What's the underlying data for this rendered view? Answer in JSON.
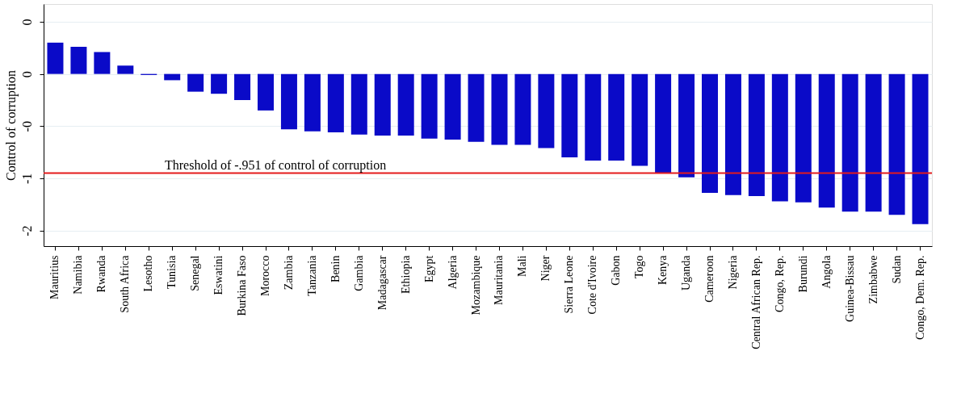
{
  "chart_data": {
    "type": "bar",
    "ylabel": "Control of corruption",
    "categories": [
      "Mauritius",
      "Namibia",
      "Rwanda",
      "South Africa",
      "Lesotho",
      "Tunisia",
      "Senegal",
      "Eswatini",
      "Burkina Faso",
      "Morocco",
      "Zambia",
      "Tanzania",
      "Benin",
      "Gambia",
      "Madagascar",
      "Ethiopia",
      "Egypt",
      "Algeria",
      "Mozambique",
      "Mauritania",
      "Mali",
      "Niger",
      "Sierra Leone",
      "Cote d'Ivoire",
      "Gabon",
      "Togo",
      "Kenya",
      "Uganda",
      "Cameroon",
      "Nigeria",
      "Central African Rep.",
      "Congo, Rep.",
      "Burundi",
      "Angola",
      "Guinea-Bissau",
      "Zimbabwe",
      "Sudan",
      "Congo, Dem. Rep."
    ],
    "values": [
      0.3,
      0.26,
      0.21,
      0.08,
      -0.01,
      -0.06,
      -0.17,
      -0.19,
      -0.25,
      -0.35,
      -0.53,
      -0.55,
      -0.56,
      -0.58,
      -0.59,
      -0.59,
      -0.62,
      -0.63,
      -0.65,
      -0.68,
      -0.68,
      -0.71,
      -0.8,
      -0.83,
      -0.83,
      -0.88,
      -0.95,
      -0.99,
      -1.14,
      -1.16,
      -1.17,
      -1.22,
      -1.23,
      -1.28,
      -1.32,
      -1.32,
      -1.35,
      -1.44
    ],
    "color": "#0a0ac8",
    "ylim": [
      -1.65,
      0.67
    ],
    "yticks": [
      {
        "value": 0.5,
        "label": "0"
      },
      {
        "value": 0,
        "label": "0"
      },
      {
        "value": -0.5,
        "label": "-0"
      },
      {
        "value": -1,
        "label": "-1"
      },
      {
        "value": -1.5,
        "label": "-2"
      }
    ],
    "grid": "y",
    "ref_lines": [
      {
        "axis": "y",
        "value": -0.951,
        "label": "Threshold of -.951 of control of corruption",
        "color": "#e41a1c"
      }
    ]
  }
}
